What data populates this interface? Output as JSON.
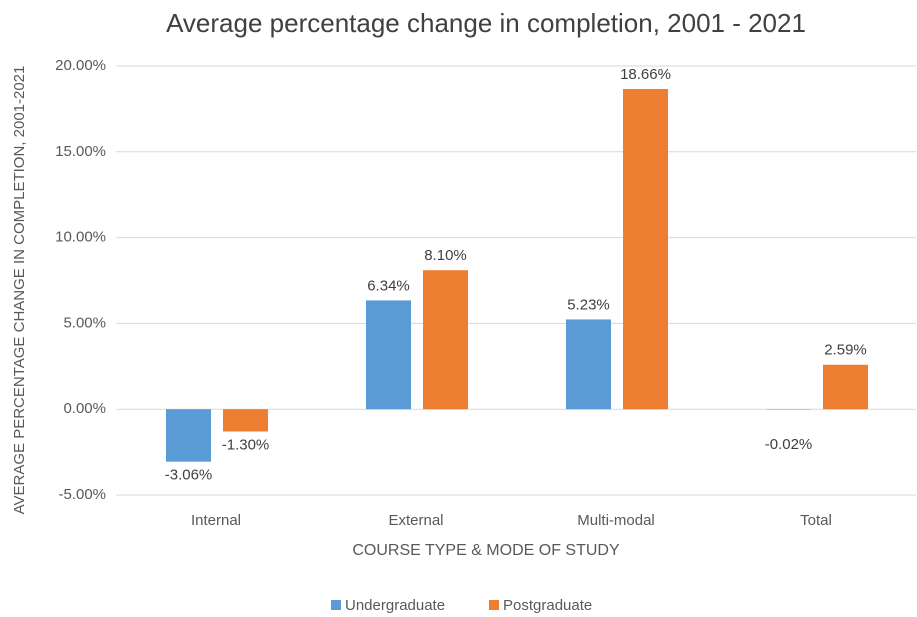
{
  "chart_data": {
    "type": "bar",
    "title": "Average percentage change in completion, 2001 - 2021",
    "x_label": "COURSE TYPE & MODE OF STUDY",
    "y_label": "AVERAGE PERCENTAGE CHANGE IN COMPLETION, 2001-2021",
    "categories": [
      "Internal",
      "External",
      "Multi-modal",
      "Total"
    ],
    "series": [
      {
        "name": "Undergraduate",
        "color": "#5b9bd5",
        "values": [
          -3.06,
          6.34,
          5.23,
          -0.02
        ],
        "value_labels": [
          "-3.06%",
          "6.34%",
          "5.23%",
          "-0.02%"
        ]
      },
      {
        "name": "Postgraduate",
        "color": "#ed7d31",
        "values": [
          -1.3,
          8.1,
          18.66,
          2.59
        ],
        "value_labels": [
          "-1.30%",
          "8.10%",
          "18.66%",
          "2.59%"
        ]
      }
    ],
    "ylim": [
      -5,
      20
    ],
    "yticks": [
      {
        "value": -5,
        "label": "-5.00%"
      },
      {
        "value": 0,
        "label": "0.00%"
      },
      {
        "value": 5,
        "label": "5.00%"
      },
      {
        "value": 10,
        "label": "10.00%"
      },
      {
        "value": 15,
        "label": "15.00%"
      },
      {
        "value": 20,
        "label": "20.00%"
      }
    ],
    "grid": true,
    "legend": "bottom"
  }
}
